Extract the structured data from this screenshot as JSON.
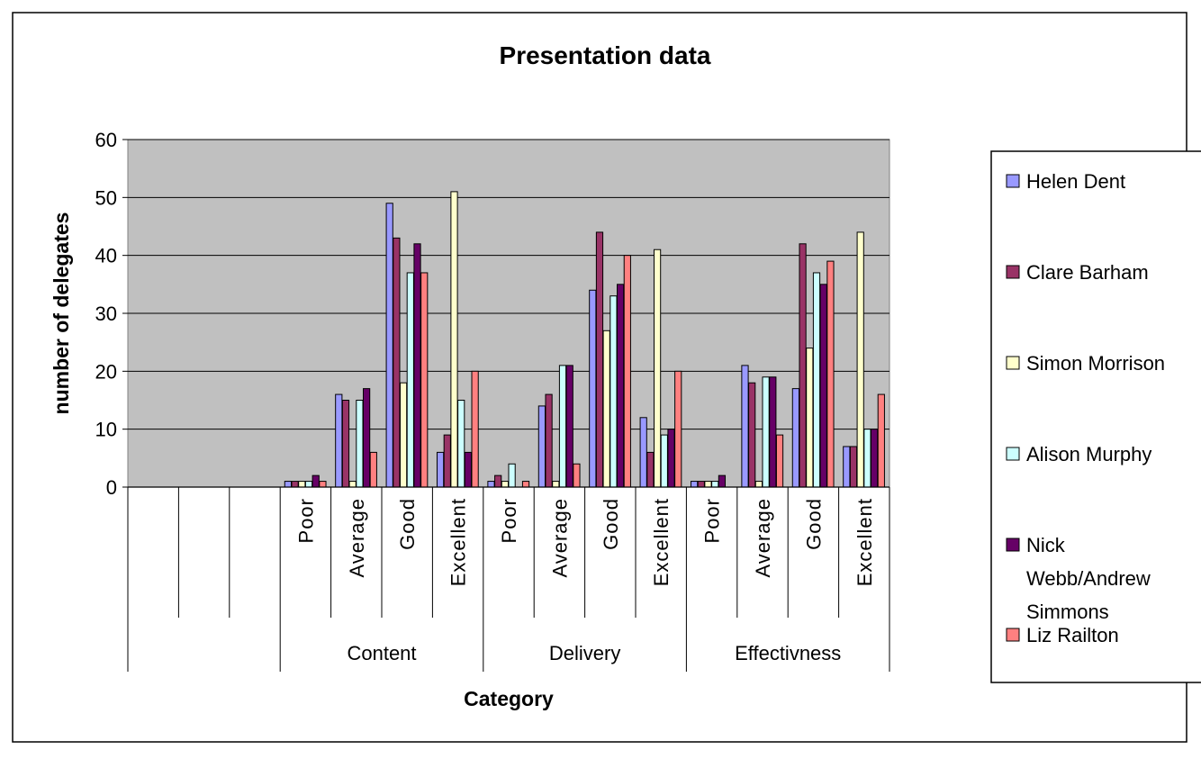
{
  "chart_data": {
    "type": "bar",
    "title": "Presentation data",
    "xlabel": "Category",
    "ylabel": "number of delegates",
    "ylim": [
      0,
      60
    ],
    "yticks": [
      0,
      10,
      20,
      30,
      40,
      50,
      60
    ],
    "grid": true,
    "legend_position": "right",
    "groups": [
      "Content",
      "Delivery",
      "Effectivness"
    ],
    "categories": [
      "Poor",
      "Average",
      "Good",
      "Excellent",
      "Poor",
      "Average",
      "Good",
      "Excellent",
      "Poor",
      "Average",
      "Good",
      "Excellent"
    ],
    "empty_leading_slots": 3,
    "series": [
      {
        "name": "Helen Dent",
        "color": "#9999FF",
        "values": [
          1,
          16,
          49,
          6,
          1,
          14,
          34,
          12,
          1,
          21,
          17,
          7
        ]
      },
      {
        "name": "Clare Barham",
        "color": "#993366",
        "values": [
          1,
          15,
          43,
          9,
          2,
          16,
          44,
          6,
          1,
          18,
          42,
          7
        ]
      },
      {
        "name": "Simon Morrison",
        "color": "#FFFFCC",
        "values": [
          1,
          1,
          18,
          51,
          1,
          1,
          27,
          41,
          1,
          1,
          24,
          44
        ]
      },
      {
        "name": "Alison Murphy",
        "color": "#CCFFFF",
        "values": [
          1,
          15,
          37,
          15,
          4,
          21,
          33,
          9,
          1,
          19,
          37,
          10
        ]
      },
      {
        "name": "Nick Webb/Andrew Simmons",
        "color": "#660066",
        "values": [
          2,
          17,
          42,
          6,
          0,
          21,
          35,
          10,
          2,
          19,
          35,
          10
        ]
      },
      {
        "name": "Liz Railton",
        "color": "#FF8080",
        "values": [
          1,
          6,
          37,
          20,
          1,
          4,
          40,
          20,
          0,
          9,
          39,
          16
        ]
      }
    ]
  }
}
